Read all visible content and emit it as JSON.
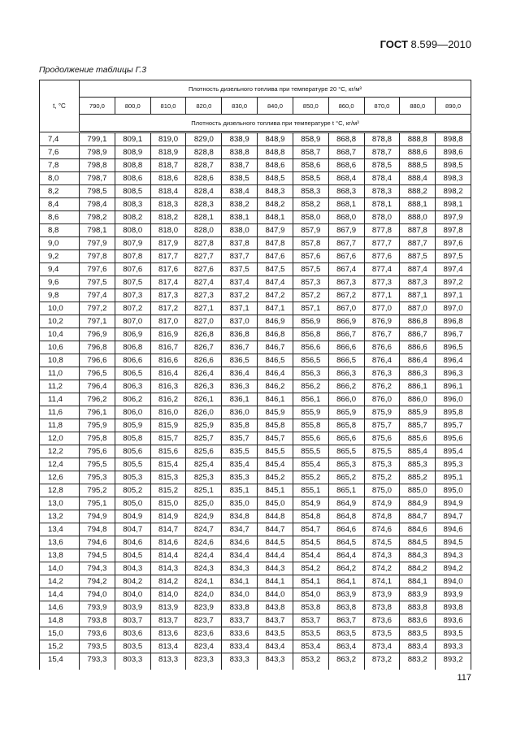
{
  "header": {
    "standard_bold": "ГОСТ",
    "standard_rest": "8.599—2010"
  },
  "caption": "Продолжение таблицы Г.3",
  "table": {
    "t_header": "t, °C",
    "top_header": "Плотность дизельного топлива при температуре 20 °С, кг/м³",
    "bottom_header": "Плотность дизельного топлива при температуре t °С, кг/м³",
    "density_columns": [
      "790,0",
      "800,0",
      "810,0",
      "820,0",
      "830,0",
      "840,0",
      "850,0",
      "860,0",
      "870,0",
      "880,0",
      "890,0"
    ],
    "rows": [
      [
        "7,4",
        "799,1",
        "809,1",
        "819,0",
        "829,0",
        "838,9",
        "848,9",
        "858,9",
        "868,8",
        "878,8",
        "888,8",
        "898,8"
      ],
      [
        "7,6",
        "798,9",
        "808,9",
        "818,9",
        "828,8",
        "838,8",
        "848,8",
        "858,7",
        "868,7",
        "878,7",
        "888,6",
        "898,6"
      ],
      [
        "7,8",
        "798,8",
        "808,8",
        "818,7",
        "828,7",
        "838,7",
        "848,6",
        "858,6",
        "868,6",
        "878,5",
        "888,5",
        "898,5"
      ],
      [
        "8,0",
        "798,7",
        "808,6",
        "818,6",
        "828,6",
        "838,5",
        "848,5",
        "858,5",
        "868,4",
        "878,4",
        "888,4",
        "898,3"
      ],
      [
        "8,2",
        "798,5",
        "808,5",
        "818,4",
        "828,4",
        "838,4",
        "848,3",
        "858,3",
        "868,3",
        "878,3",
        "888,2",
        "898,2"
      ],
      [
        "8,4",
        "798,4",
        "808,3",
        "818,3",
        "828,3",
        "838,2",
        "848,2",
        "858,2",
        "868,1",
        "878,1",
        "888,1",
        "898,1"
      ],
      [
        "8,6",
        "798,2",
        "808,2",
        "818,2",
        "828,1",
        "838,1",
        "848,1",
        "858,0",
        "868,0",
        "878,0",
        "888,0",
        "897,9"
      ],
      [
        "8,8",
        "798,1",
        "808,0",
        "818,0",
        "828,0",
        "838,0",
        "847,9",
        "857,9",
        "867,9",
        "877,8",
        "887,8",
        "897,8"
      ],
      [
        "9,0",
        "797,9",
        "807,9",
        "817,9",
        "827,8",
        "837,8",
        "847,8",
        "857,8",
        "867,7",
        "877,7",
        "887,7",
        "897,6"
      ],
      [
        "9,2",
        "797,8",
        "807,8",
        "817,7",
        "827,7",
        "837,7",
        "847,6",
        "857,6",
        "867,6",
        "877,6",
        "887,5",
        "897,5"
      ],
      [
        "9,4",
        "797,6",
        "807,6",
        "817,6",
        "827,6",
        "837,5",
        "847,5",
        "857,5",
        "867,4",
        "877,4",
        "887,4",
        "897,4"
      ],
      [
        "9,6",
        "797,5",
        "807,5",
        "817,4",
        "827,4",
        "837,4",
        "847,4",
        "857,3",
        "867,3",
        "877,3",
        "887,3",
        "897,2"
      ],
      [
        "9,8",
        "797,4",
        "807,3",
        "817,3",
        "827,3",
        "837,2",
        "847,2",
        "857,2",
        "867,2",
        "877,1",
        "887,1",
        "897,1"
      ],
      [
        "10,0",
        "797,2",
        "807,2",
        "817,2",
        "827,1",
        "837,1",
        "847,1",
        "857,1",
        "867,0",
        "877,0",
        "887,0",
        "897,0"
      ],
      [
        "10,2",
        "797,1",
        "807,0",
        "817,0",
        "827,0",
        "837,0",
        "846,9",
        "856,9",
        "866,9",
        "876,9",
        "886,8",
        "896,8"
      ],
      [
        "10,4",
        "796,9",
        "806,9",
        "816,9",
        "826,8",
        "836,8",
        "846,8",
        "856,8",
        "866,7",
        "876,7",
        "886,7",
        "896,7"
      ],
      [
        "10,6",
        "796,8",
        "806,8",
        "816,7",
        "826,7",
        "836,7",
        "846,7",
        "856,6",
        "866,6",
        "876,6",
        "886,6",
        "896,5"
      ],
      [
        "10,8",
        "796,6",
        "806,6",
        "816,6",
        "826,6",
        "836,5",
        "846,5",
        "856,5",
        "866,5",
        "876,4",
        "886,4",
        "896,4"
      ],
      [
        "11,0",
        "796,5",
        "806,5",
        "816,4",
        "826,4",
        "836,4",
        "846,4",
        "856,3",
        "866,3",
        "876,3",
        "886,3",
        "896,3"
      ],
      [
        "11,2",
        "796,4",
        "806,3",
        "816,3",
        "826,3",
        "836,3",
        "846,2",
        "856,2",
        "866,2",
        "876,2",
        "886,1",
        "896,1"
      ],
      [
        "11,4",
        "796,2",
        "806,2",
        "816,2",
        "826,1",
        "836,1",
        "846,1",
        "856,1",
        "866,0",
        "876,0",
        "886,0",
        "896,0"
      ],
      [
        "11,6",
        "796,1",
        "806,0",
        "816,0",
        "826,0",
        "836,0",
        "845,9",
        "855,9",
        "865,9",
        "875,9",
        "885,9",
        "895,8"
      ],
      [
        "11,8",
        "795,9",
        "805,9",
        "815,9",
        "825,9",
        "835,8",
        "845,8",
        "855,8",
        "865,8",
        "875,7",
        "885,7",
        "895,7"
      ],
      [
        "12,0",
        "795,8",
        "805,8",
        "815,7",
        "825,7",
        "835,7",
        "845,7",
        "855,6",
        "865,6",
        "875,6",
        "885,6",
        "895,6"
      ],
      [
        "12,2",
        "795,6",
        "805,6",
        "815,6",
        "825,6",
        "835,5",
        "845,5",
        "855,5",
        "865,5",
        "875,5",
        "885,4",
        "895,4"
      ],
      [
        "12,4",
        "795,5",
        "805,5",
        "815,4",
        "825,4",
        "835,4",
        "845,4",
        "855,4",
        "865,3",
        "875,3",
        "885,3",
        "895,3"
      ],
      [
        "12,6",
        "795,3",
        "805,3",
        "815,3",
        "825,3",
        "835,3",
        "845,2",
        "855,2",
        "865,2",
        "875,2",
        "885,2",
        "895,1"
      ],
      [
        "12,8",
        "795,2",
        "805,2",
        "815,2",
        "825,1",
        "835,1",
        "845,1",
        "855,1",
        "865,1",
        "875,0",
        "885,0",
        "895,0"
      ],
      [
        "13,0",
        "795,1",
        "805,0",
        "815,0",
        "825,0",
        "835,0",
        "845,0",
        "854,9",
        "864,9",
        "874,9",
        "884,9",
        "894,9"
      ],
      [
        "13,2",
        "794,9",
        "804,9",
        "814,9",
        "824,9",
        "834,8",
        "844,8",
        "854,8",
        "864,8",
        "874,8",
        "884,7",
        "894,7"
      ],
      [
        "13,4",
        "794,8",
        "804,7",
        "814,7",
        "824,7",
        "834,7",
        "844,7",
        "854,7",
        "864,6",
        "874,6",
        "884,6",
        "894,6"
      ],
      [
        "13,6",
        "794,6",
        "804,6",
        "814,6",
        "824,6",
        "834,6",
        "844,5",
        "854,5",
        "864,5",
        "874,5",
        "884,5",
        "894,5"
      ],
      [
        "13,8",
        "794,5",
        "804,5",
        "814,4",
        "824,4",
        "834,4",
        "844,4",
        "854,4",
        "864,4",
        "874,3",
        "884,3",
        "894,3"
      ],
      [
        "14,0",
        "794,3",
        "804,3",
        "814,3",
        "824,3",
        "834,3",
        "844,3",
        "854,2",
        "864,2",
        "874,2",
        "884,2",
        "894,2"
      ],
      [
        "14,2",
        "794,2",
        "804,2",
        "814,2",
        "824,1",
        "834,1",
        "844,1",
        "854,1",
        "864,1",
        "874,1",
        "884,1",
        "894,0"
      ],
      [
        "14,4",
        "794,0",
        "804,0",
        "814,0",
        "824,0",
        "834,0",
        "844,0",
        "854,0",
        "863,9",
        "873,9",
        "883,9",
        "893,9"
      ],
      [
        "14,6",
        "793,9",
        "803,9",
        "813,9",
        "823,9",
        "833,8",
        "843,8",
        "853,8",
        "863,8",
        "873,8",
        "883,8",
        "893,8"
      ],
      [
        "14,8",
        "793,8",
        "803,7",
        "813,7",
        "823,7",
        "833,7",
        "843,7",
        "853,7",
        "863,7",
        "873,6",
        "883,6",
        "893,6"
      ],
      [
        "15,0",
        "793,6",
        "803,6",
        "813,6",
        "823,6",
        "833,6",
        "843,5",
        "853,5",
        "863,5",
        "873,5",
        "883,5",
        "893,5"
      ],
      [
        "15,2",
        "793,5",
        "803,5",
        "813,4",
        "823,4",
        "833,4",
        "843,4",
        "853,4",
        "863,4",
        "873,4",
        "883,4",
        "893,3"
      ],
      [
        "15,4",
        "793,3",
        "803,3",
        "813,3",
        "823,3",
        "833,3",
        "843,3",
        "853,2",
        "863,2",
        "873,2",
        "883,2",
        "893,2"
      ]
    ]
  },
  "page_number": "117"
}
